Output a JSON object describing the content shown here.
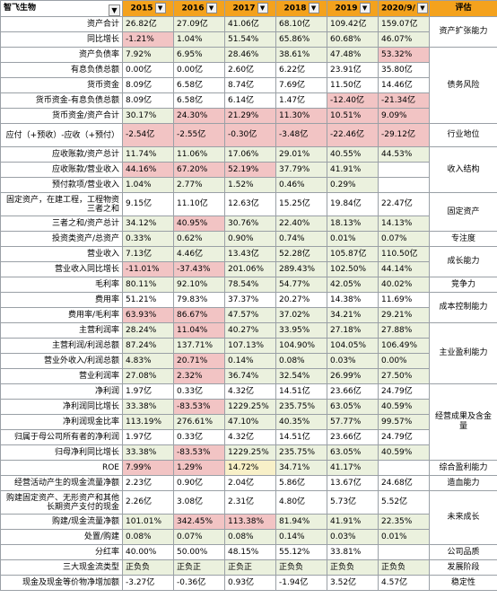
{
  "sheet": {
    "title": "智飞生物",
    "years": [
      "2015",
      "2016",
      "2017",
      "2018",
      "2019",
      "2020/9/"
    ],
    "eval_header": "评估",
    "dropdown_glyph": "▼"
  },
  "colors": {
    "header": "#f4a21d",
    "green": "#ebf1de",
    "red": "#f2c4c4",
    "yellow": "#f8f0c8"
  },
  "rows": [
    {
      "label": "资产合计",
      "values": [
        "26.82亿",
        "27.09亿",
        "41.06亿",
        "68.10亿",
        "109.42亿",
        "159.07亿"
      ]
    },
    {
      "label": "同比增长",
      "values": [
        "-1.21%",
        "1.04%",
        "51.54%",
        "65.86%",
        "60.68%",
        "46.07%"
      ]
    },
    {
      "label": "资产负债率",
      "values": [
        "7.92%",
        "6.95%",
        "28.46%",
        "38.61%",
        "47.48%",
        "53.32%"
      ]
    },
    {
      "label": "有息负债总额",
      "values": [
        "0.00亿",
        "0.00亿",
        "2.60亿",
        "6.22亿",
        "23.91亿",
        "35.80亿"
      ]
    },
    {
      "label": "货币资金",
      "values": [
        "8.09亿",
        "6.58亿",
        "8.74亿",
        "7.69亿",
        "11.50亿",
        "14.46亿"
      ]
    },
    {
      "label": "货币资金-有息负债总额",
      "values": [
        "8.09亿",
        "6.58亿",
        "6.14亿",
        "1.47亿",
        "-12.40亿",
        "-21.34亿"
      ]
    },
    {
      "label": "货币资金/资产合计",
      "values": [
        "30.17%",
        "24.30%",
        "21.29%",
        "11.30%",
        "10.51%",
        "9.09%"
      ]
    },
    {
      "label": "应付（+预收）-应收（+预付）",
      "values": [
        "-2.54亿",
        "-2.55亿",
        "-0.30亿",
        "-3.48亿",
        "-22.46亿",
        "-29.12亿"
      ]
    },
    {
      "label": "应收账款/资产总计",
      "values": [
        "11.74%",
        "11.06%",
        "17.06%",
        "29.01%",
        "40.55%",
        "44.53%"
      ]
    },
    {
      "label": "应收账款/营业收入",
      "values": [
        "44.16%",
        "67.20%",
        "52.19%",
        "37.79%",
        "41.91%",
        ""
      ]
    },
    {
      "label": "预付款项/营业收入",
      "values": [
        "1.04%",
        "2.77%",
        "1.52%",
        "0.46%",
        "0.29%",
        ""
      ]
    },
    {
      "label": "固定资产，在建工程，工程物资三者之和",
      "values": [
        "9.15亿",
        "11.10亿",
        "12.63亿",
        "15.25亿",
        "19.84亿",
        "22.47亿"
      ]
    },
    {
      "label": "三者之和/资产总计",
      "values": [
        "34.12%",
        "40.95%",
        "30.76%",
        "22.40%",
        "18.13%",
        "14.13%"
      ]
    },
    {
      "label": "投资类资产/总资产",
      "values": [
        "0.33%",
        "0.62%",
        "0.90%",
        "0.74%",
        "0.01%",
        "0.07%"
      ]
    },
    {
      "label": "营业收入",
      "values": [
        "7.13亿",
        "4.46亿",
        "13.43亿",
        "52.28亿",
        "105.87亿",
        "110.50亿"
      ]
    },
    {
      "label": "营业收入同比增长",
      "values": [
        "-11.01%",
        "-37.43%",
        "201.06%",
        "289.43%",
        "102.50%",
        "44.14%"
      ]
    },
    {
      "label": "毛利率",
      "values": [
        "80.11%",
        "92.10%",
        "78.54%",
        "54.77%",
        "42.05%",
        "40.02%"
      ]
    },
    {
      "label": "费用率",
      "values": [
        "51.21%",
        "79.83%",
        "37.37%",
        "20.27%",
        "14.38%",
        "11.69%"
      ]
    },
    {
      "label": "费用率/毛利率",
      "values": [
        "63.93%",
        "86.67%",
        "47.57%",
        "37.02%",
        "34.21%",
        "29.21%"
      ]
    },
    {
      "label": "主营利润率",
      "values": [
        "28.24%",
        "11.04%",
        "40.27%",
        "33.95%",
        "27.18%",
        "27.88%"
      ]
    },
    {
      "label": "主营利润/利润总额",
      "values": [
        "87.24%",
        "137.71%",
        "107.13%",
        "104.90%",
        "104.05%",
        "106.49%"
      ]
    },
    {
      "label": "营业外收入/利润总额",
      "values": [
        "4.83%",
        "20.71%",
        "0.14%",
        "0.08%",
        "0.03%",
        "0.00%"
      ]
    },
    {
      "label": "营业利润率",
      "values": [
        "27.08%",
        "2.32%",
        "36.74%",
        "32.54%",
        "26.99%",
        "27.50%"
      ]
    },
    {
      "label": "净利润",
      "values": [
        "1.97亿",
        "0.33亿",
        "4.32亿",
        "14.51亿",
        "23.66亿",
        "24.79亿"
      ]
    },
    {
      "label": "净利润同比增长",
      "values": [
        "33.38%",
        "-83.53%",
        "1229.25%",
        "235.75%",
        "63.05%",
        "40.59%"
      ]
    },
    {
      "label": "净利润现金比率",
      "values": [
        "113.19%",
        "276.61%",
        "47.10%",
        "40.35%",
        "57.77%",
        "99.57%"
      ]
    },
    {
      "label": "归属于母公司所有者的净利润",
      "values": [
        "1.97亿",
        "0.33亿",
        "4.32亿",
        "14.51亿",
        "23.66亿",
        "24.79亿"
      ]
    },
    {
      "label": "归母净利同比增长",
      "values": [
        "33.38%",
        "-83.53%",
        "1229.25%",
        "235.75%",
        "63.05%",
        "40.59%"
      ]
    },
    {
      "label": "ROE",
      "values": [
        "7.99%",
        "1.29%",
        "14.72%",
        "34.71%",
        "41.17%",
        ""
      ]
    },
    {
      "label": "经营活动产生的现金流量净额",
      "values": [
        "2.23亿",
        "0.90亿",
        "2.04亿",
        "5.86亿",
        "13.67亿",
        "24.68亿"
      ]
    },
    {
      "label": "购建固定资产、无形资产和其他长期资产支付的现金",
      "values": [
        "2.26亿",
        "3.08亿",
        "2.31亿",
        "4.80亿",
        "5.73亿",
        "5.52亿"
      ]
    },
    {
      "label": "购建/现金流量净额",
      "values": [
        "101.01%",
        "342.45%",
        "113.38%",
        "81.94%",
        "41.91%",
        "22.35%"
      ]
    },
    {
      "label": "处置/购建",
      "values": [
        "0.08%",
        "0.07%",
        "0.08%",
        "0.14%",
        "0.03%",
        "0.01%"
      ]
    },
    {
      "label": "分红率",
      "values": [
        "40.00%",
        "50.00%",
        "48.15%",
        "55.12%",
        "33.81%",
        ""
      ]
    },
    {
      "label": "三大现金流类型",
      "values": [
        "正负负",
        "正负正",
        "正负正",
        "正负负",
        "正负负",
        "正负负"
      ]
    },
    {
      "label": "现金及现金等价物净增加额",
      "values": [
        "-3.27亿",
        "-0.36亿",
        "0.93亿",
        "-1.94亿",
        "3.52亿",
        "4.57亿"
      ]
    }
  ],
  "cell_colors": [
    [
      "g",
      "g",
      "g",
      "g",
      "g",
      "g"
    ],
    [
      "r",
      "g",
      "g",
      "g",
      "g",
      "g"
    ],
    [
      "g",
      "g",
      "g",
      "g",
      "g",
      "r"
    ],
    [
      "",
      "",
      "",
      "",
      "",
      ""
    ],
    [
      "",
      "",
      "",
      "",
      "",
      ""
    ],
    [
      "",
      "",
      "",
      "",
      "r",
      "r"
    ],
    [
      "g",
      "r",
      "r",
      "r",
      "r",
      "r"
    ],
    [
      "r",
      "r",
      "r",
      "r",
      "r",
      "r"
    ],
    [
      "g",
      "g",
      "g",
      "g",
      "g",
      "g"
    ],
    [
      "r",
      "r",
      "r",
      "g",
      "g",
      ""
    ],
    [
      "g",
      "g",
      "g",
      "g",
      "g",
      ""
    ],
    [
      "",
      "",
      "",
      "",
      "",
      ""
    ],
    [
      "g",
      "r",
      "g",
      "g",
      "g",
      "g"
    ],
    [
      "g",
      "g",
      "g",
      "g",
      "g",
      "g"
    ],
    [
      "g",
      "g",
      "g",
      "g",
      "g",
      "g"
    ],
    [
      "r",
      "r",
      "g",
      "g",
      "g",
      "g"
    ],
    [
      "g",
      "g",
      "g",
      "g",
      "g",
      "g"
    ],
    [
      "",
      "",
      "",
      "",
      "",
      ""
    ],
    [
      "r",
      "r",
      "g",
      "g",
      "g",
      "g"
    ],
    [
      "g",
      "r",
      "g",
      "g",
      "g",
      "g"
    ],
    [
      "g",
      "g",
      "g",
      "g",
      "g",
      "g"
    ],
    [
      "g",
      "r",
      "g",
      "g",
      "g",
      "g"
    ],
    [
      "g",
      "r",
      "g",
      "g",
      "g",
      "g"
    ],
    [
      "",
      "",
      "",
      "",
      "",
      ""
    ],
    [
      "g",
      "r",
      "g",
      "g",
      "g",
      "g"
    ],
    [
      "g",
      "g",
      "g",
      "g",
      "g",
      "g"
    ],
    [
      "",
      "",
      "",
      "",
      "",
      ""
    ],
    [
      "g",
      "r",
      "g",
      "g",
      "g",
      "g"
    ],
    [
      "r",
      "r",
      "y",
      "g",
      "g",
      ""
    ],
    [
      "",
      "",
      "",
      "",
      "",
      ""
    ],
    [
      "",
      "",
      "",
      "",
      "",
      ""
    ],
    [
      "g",
      "r",
      "r",
      "g",
      "g",
      "g"
    ],
    [
      "g",
      "g",
      "g",
      "g",
      "g",
      "g"
    ],
    [
      "",
      "",
      "",
      "",
      "",
      ""
    ],
    [
      "g",
      "g",
      "g",
      "g",
      "g",
      "g"
    ],
    [
      "",
      "",
      "",
      "",
      "",
      ""
    ]
  ],
  "categories": [
    {
      "label": "资产扩张能力",
      "row": 0,
      "rowspan": 2
    },
    {
      "label": "债务风险",
      "row": 2,
      "rowspan": 5
    },
    {
      "label": "行业地位",
      "row": 7,
      "rowspan": 1
    },
    {
      "label": "收入结构",
      "row": 8,
      "rowspan": 3
    },
    {
      "label": "固定资产",
      "row": 11,
      "rowspan": 2
    },
    {
      "label": "专注度",
      "row": 13,
      "rowspan": 1
    },
    {
      "label": "成长能力",
      "row": 14,
      "rowspan": 2
    },
    {
      "label": "竞争力",
      "row": 16,
      "rowspan": 1
    },
    {
      "label": "成本控制能力",
      "row": 17,
      "rowspan": 2
    },
    {
      "label": "主业盈利能力",
      "row": 19,
      "rowspan": 4
    },
    {
      "label": "经营成果及含金量",
      "row": 23,
      "rowspan": 5
    },
    {
      "label": "综合盈利能力",
      "row": 28,
      "rowspan": 1
    },
    {
      "label": "造血能力",
      "row": 29,
      "rowspan": 1
    },
    {
      "label": "未来成长",
      "row": 30,
      "rowspan": 3
    },
    {
      "label": "公司品质",
      "row": 33,
      "rowspan": 1
    },
    {
      "label": "发展阶段",
      "row": 34,
      "rowspan": 1
    },
    {
      "label": "稳定性",
      "row": 35,
      "rowspan": 1
    }
  ]
}
